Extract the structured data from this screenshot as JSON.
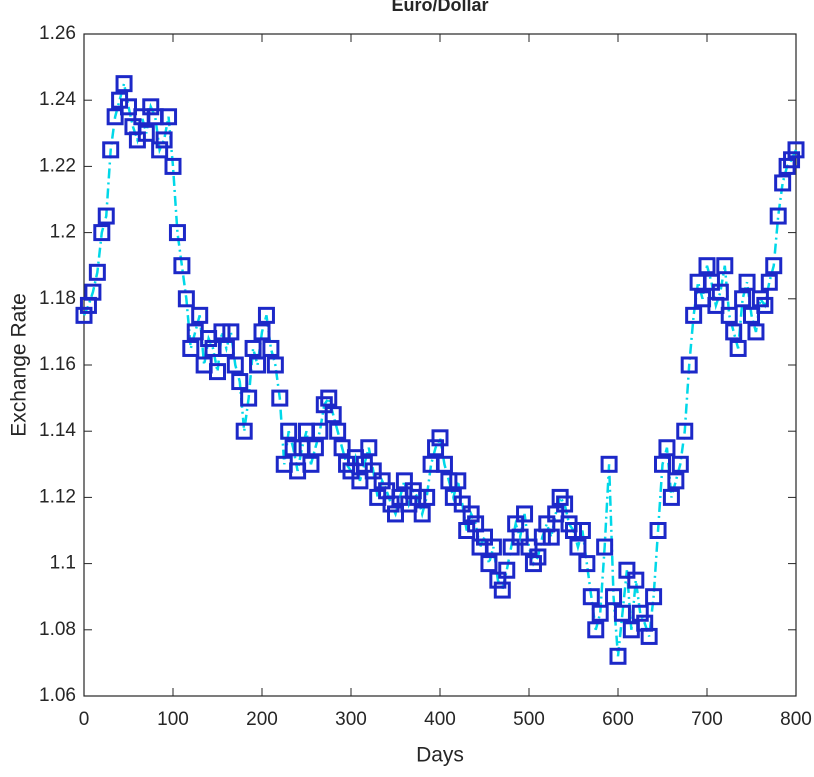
{
  "chart_data": {
    "type": "line",
    "title": "Euro/Dollar",
    "x_label": "Days",
    "y_label": "Exchange Rate",
    "x": [
      0,
      5,
      10,
      15,
      20,
      25,
      30,
      35,
      40,
      45,
      50,
      55,
      60,
      65,
      70,
      75,
      80,
      85,
      90,
      95,
      100,
      105,
      110,
      115,
      120,
      125,
      130,
      135,
      140,
      145,
      150,
      155,
      160,
      165,
      170,
      175,
      180,
      185,
      190,
      195,
      200,
      205,
      210,
      215,
      220,
      225,
      230,
      235,
      240,
      245,
      250,
      255,
      260,
      265,
      270,
      275,
      280,
      285,
      290,
      295,
      300,
      305,
      310,
      315,
      320,
      325,
      330,
      335,
      340,
      345,
      350,
      355,
      360,
      365,
      370,
      375,
      380,
      385,
      390,
      395,
      400,
      405,
      410,
      415,
      420,
      425,
      430,
      435,
      440,
      445,
      450,
      455,
      460,
      465,
      470,
      475,
      480,
      485,
      490,
      495,
      500,
      505,
      510,
      515,
      520,
      525,
      530,
      535,
      540,
      545,
      550,
      555,
      560,
      565,
      570,
      575,
      580,
      585,
      590,
      595,
      600,
      605,
      610,
      615,
      620,
      625,
      630,
      635,
      640,
      645,
      650,
      655,
      660,
      665,
      670,
      675,
      680,
      685,
      690,
      695,
      700,
      705,
      710,
      715,
      720,
      725,
      730,
      735,
      740,
      745,
      750,
      755,
      760,
      765,
      770,
      775,
      780,
      785,
      790,
      795,
      800
    ],
    "values": [
      1.175,
      1.178,
      1.182,
      1.188,
      1.2,
      1.205,
      1.225,
      1.235,
      1.24,
      1.245,
      1.238,
      1.232,
      1.228,
      1.235,
      1.23,
      1.238,
      1.235,
      1.225,
      1.228,
      1.235,
      1.22,
      1.2,
      1.19,
      1.18,
      1.165,
      1.17,
      1.175,
      1.16,
      1.168,
      1.165,
      1.158,
      1.17,
      1.165,
      1.17,
      1.16,
      1.155,
      1.14,
      1.15,
      1.165,
      1.16,
      1.17,
      1.175,
      1.165,
      1.16,
      1.15,
      1.13,
      1.14,
      1.135,
      1.128,
      1.135,
      1.14,
      1.13,
      1.135,
      1.14,
      1.148,
      1.15,
      1.145,
      1.14,
      1.135,
      1.13,
      1.128,
      1.132,
      1.125,
      1.13,
      1.135,
      1.128,
      1.12,
      1.125,
      1.122,
      1.118,
      1.115,
      1.12,
      1.125,
      1.118,
      1.122,
      1.12,
      1.115,
      1.12,
      1.13,
      1.135,
      1.138,
      1.13,
      1.125,
      1.12,
      1.125,
      1.118,
      1.11,
      1.115,
      1.112,
      1.105,
      1.108,
      1.1,
      1.105,
      1.095,
      1.092,
      1.098,
      1.105,
      1.112,
      1.108,
      1.115,
      1.105,
      1.1,
      1.102,
      1.108,
      1.112,
      1.108,
      1.115,
      1.12,
      1.118,
      1.112,
      1.11,
      1.105,
      1.11,
      1.1,
      1.09,
      1.08,
      1.085,
      1.105,
      1.13,
      1.09,
      1.072,
      1.085,
      1.098,
      1.08,
      1.095,
      1.085,
      1.082,
      1.078,
      1.09,
      1.11,
      1.13,
      1.135,
      1.12,
      1.125,
      1.13,
      1.14,
      1.16,
      1.175,
      1.185,
      1.18,
      1.19,
      1.185,
      1.178,
      1.182,
      1.19,
      1.175,
      1.17,
      1.165,
      1.18,
      1.185,
      1.175,
      1.17,
      1.18,
      1.178,
      1.185,
      1.19,
      1.205,
      1.215,
      1.22,
      1.222,
      1.225
    ],
    "color": "#00d8e8",
    "marker": "square",
    "marker_color": "#1c28c8",
    "xlim": [
      0,
      800
    ],
    "xticks": [
      0,
      100,
      200,
      300,
      400,
      500,
      600,
      700,
      800
    ],
    "ylim": [
      1.06,
      1.26
    ],
    "yticks": [
      1.06,
      1.08,
      1.1,
      1.12,
      1.14,
      1.16,
      1.18,
      1.2,
      1.22,
      1.24,
      1.26
    ],
    "grid": false
  }
}
